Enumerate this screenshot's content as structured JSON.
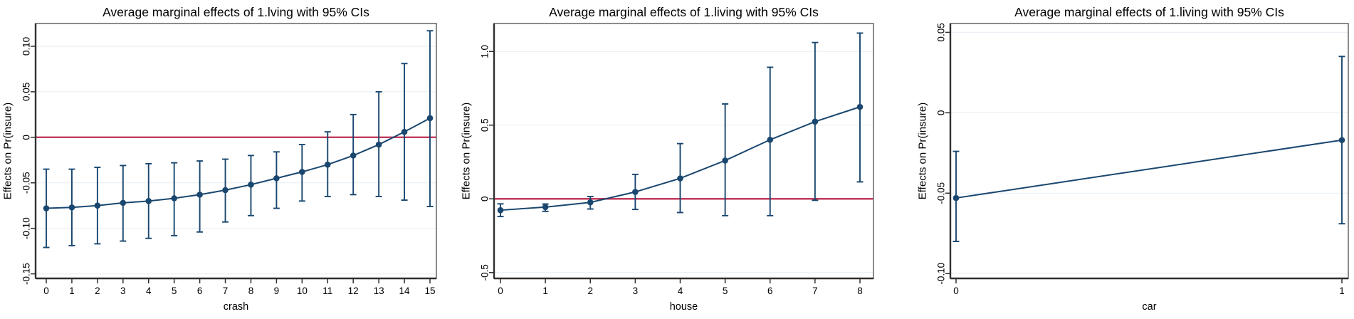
{
  "figure": {
    "description": "Three average-marginal-effects plots with 95% confidence intervals",
    "ylabel": "Effects on Pr(insure)"
  },
  "colors": {
    "navy": "#1a476f",
    "title_navy": "#1b3d6d",
    "red_line": "#c23b5e",
    "grid": "#eaf0f6",
    "frame": "#6e6e6e",
    "axis": "#2f2f2f",
    "text": "#000000",
    "background": "#ffffff"
  },
  "chart_data": [
    {
      "type": "line",
      "title": "Average marginal effects of 1.lving with 95% CIs",
      "xlabel": "crash",
      "ylabel": "Effects on Pr(insure)",
      "legend": "none",
      "grid": "horizontal",
      "zero_line": true,
      "x": [
        0,
        1,
        2,
        3,
        4,
        5,
        6,
        7,
        8,
        9,
        10,
        11,
        12,
        13,
        14,
        15
      ],
      "xtick_labels": [
        "0",
        "1",
        "2",
        "3",
        "4",
        "5",
        "6",
        "7",
        "8",
        "9",
        "10",
        "11",
        "12",
        "13",
        "14",
        "15"
      ],
      "values": [
        -0.078,
        -0.077,
        -0.075,
        -0.072,
        -0.07,
        -0.067,
        -0.063,
        -0.058,
        -0.052,
        -0.045,
        -0.038,
        -0.03,
        -0.02,
        -0.008,
        0.006,
        0.021
      ],
      "ci_low": [
        -0.121,
        -0.119,
        -0.117,
        -0.114,
        -0.111,
        -0.108,
        -0.104,
        -0.093,
        -0.086,
        -0.078,
        -0.07,
        -0.065,
        -0.063,
        -0.065,
        -0.069,
        -0.076
      ],
      "ci_high": [
        -0.035,
        -0.035,
        -0.033,
        -0.031,
        -0.029,
        -0.028,
        -0.026,
        -0.024,
        -0.02,
        -0.016,
        -0.008,
        0.006,
        0.025,
        0.05,
        0.081,
        0.117
      ],
      "ytick_values": [
        0.1,
        0.05,
        0,
        -0.05,
        -0.1,
        -0.15
      ],
      "ytick_labels": [
        "0.10",
        "0.05",
        "0",
        "-0.05",
        "-0.10",
        "-0.15"
      ],
      "xlim": [
        0,
        15
      ],
      "ylim": [
        -0.155,
        0.125
      ]
    },
    {
      "type": "line",
      "title": "Average marginal effects of 1.living with 95% CIs",
      "xlabel": "house",
      "ylabel": "Effects on Pr(insure)",
      "legend": "none",
      "grid": "horizontal",
      "zero_line": true,
      "x": [
        0,
        1,
        2,
        3,
        4,
        5,
        6,
        7,
        8
      ],
      "xtick_labels": [
        "0",
        "1",
        "2",
        "3",
        "4",
        "5",
        "6",
        "7",
        "8"
      ],
      "values": [
        -0.077,
        -0.056,
        -0.024,
        0.047,
        0.139,
        0.26,
        0.401,
        0.524,
        0.624
      ],
      "ci_low": [
        -0.12,
        -0.085,
        -0.069,
        -0.072,
        -0.093,
        -0.114,
        -0.114,
        -0.01,
        0.115
      ],
      "ci_high": [
        -0.034,
        -0.035,
        0.016,
        0.166,
        0.375,
        0.644,
        0.893,
        1.061,
        1.125
      ],
      "ytick_values": [
        1.0,
        0.5,
        0,
        -0.5
      ],
      "ytick_labels": [
        "1.0",
        "0.5",
        "0",
        "-0.5"
      ],
      "xlim": [
        0,
        8
      ],
      "ylim": [
        -0.54,
        1.19
      ]
    },
    {
      "type": "line",
      "title": "Average marginal effects of 1.living with 95% CIs",
      "xlabel": "car",
      "ylabel": "Effects on Pr(insure)",
      "legend": "none",
      "grid": "horizontal",
      "zero_line": false,
      "x": [
        0,
        1
      ],
      "xtick_labels": [
        "0",
        "1"
      ],
      "values": [
        -0.053,
        -0.017
      ],
      "ci_low": [
        -0.08,
        -0.069
      ],
      "ci_high": [
        -0.024,
        0.035
      ],
      "ytick_values": [
        0.05,
        0,
        -0.05,
        -0.1
      ],
      "ytick_labels": [
        "0.05",
        "0",
        "-0.05",
        "-0.10"
      ],
      "xlim": [
        0,
        1
      ],
      "ylim": [
        -0.103,
        0.0555
      ]
    }
  ]
}
